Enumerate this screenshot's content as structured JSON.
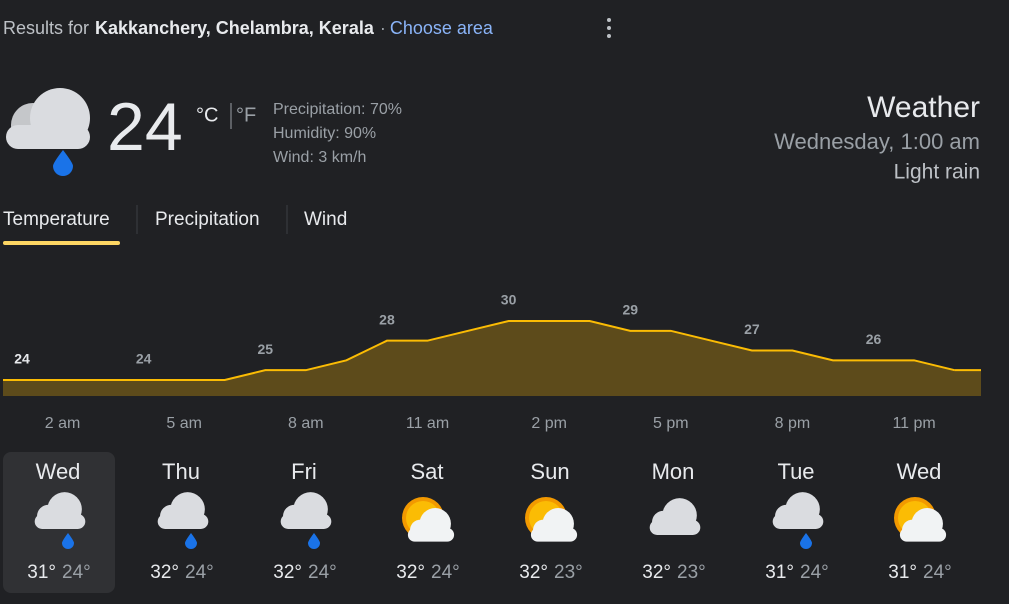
{
  "header": {
    "prefix": "Results for",
    "location": "Kakkanchery, Chelambra, Kerala",
    "separator": "·",
    "choose_area": "Choose area"
  },
  "current": {
    "temperature": "24",
    "unit_c": "°C",
    "unit_f": "°F",
    "precipitation": "Precipitation: 70%",
    "humidity": "Humidity: 90%",
    "wind": "Wind: 3 km/h"
  },
  "summary": {
    "title": "Weather",
    "datetime": "Wednesday, 1:00 am",
    "condition": "Light rain"
  },
  "tabs": [
    "Temperature",
    "Precipitation",
    "Wind"
  ],
  "chart_data": {
    "type": "area",
    "categories": [
      null,
      "2 am",
      null,
      null,
      "5 am",
      null,
      null,
      "8 am",
      null,
      null,
      "11 am",
      null,
      null,
      "2 pm",
      null,
      null,
      "5 pm",
      null,
      null,
      "8 pm",
      null,
      null,
      "11 pm",
      null
    ],
    "values": [
      24,
      24,
      24,
      24,
      24,
      24,
      25,
      25,
      26,
      28,
      28,
      29,
      30,
      30,
      30,
      29,
      29,
      28,
      27,
      27,
      26,
      26,
      26,
      25
    ],
    "labeled": [
      0,
      3,
      6,
      9,
      12,
      15,
      18,
      21
    ],
    "color": "#fbbc04"
  },
  "days": [
    {
      "name": "Wed",
      "high": "31°",
      "low": "24°"
    },
    {
      "name": "Thu",
      "high": "32°",
      "low": "24°"
    },
    {
      "name": "Fri",
      "high": "32°",
      "low": "24°"
    },
    {
      "name": "Sat",
      "high": "32°",
      "low": "24°"
    },
    {
      "name": "Sun",
      "high": "32°",
      "low": "23°"
    },
    {
      "name": "Mon",
      "high": "32°",
      "low": "23°"
    },
    {
      "name": "Tue",
      "high": "31°",
      "low": "24°"
    },
    {
      "name": "Wed",
      "high": "31°",
      "low": "24°"
    }
  ]
}
